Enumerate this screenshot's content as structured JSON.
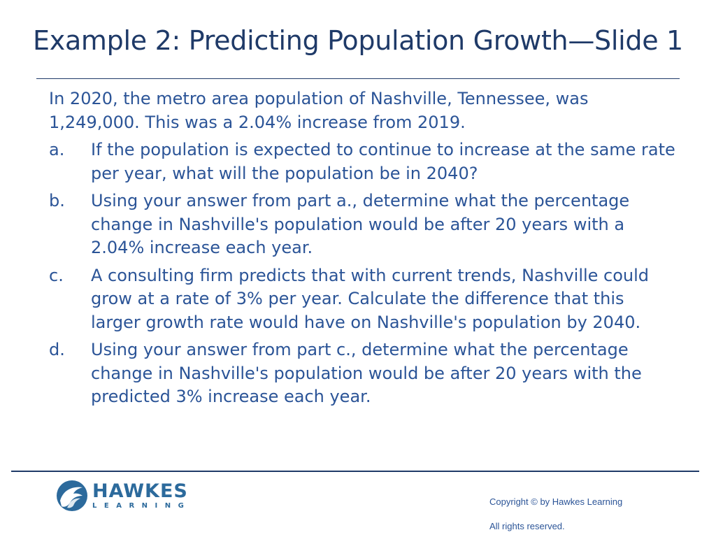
{
  "slide": {
    "title": "Example 2: Predicting Population Growth—Slide 1",
    "intro": "In 2020, the metro area population of Nashville, Tennessee, was 1,249,000. This was a 2.04% increase from 2019.",
    "parts": [
      {
        "letter": "a.",
        "text": "If the population is expected to continue to increase at the same rate per year, what will the population be in 2040?"
      },
      {
        "letter": "b.",
        "text": "Using your answer from part a., determine what the percentage change in Nashville's population would be after 20 years with a 2.04% increase each year."
      },
      {
        "letter": "c.",
        "text": "A consulting firm predicts that with current trends, Nashville could grow at a rate of 3% per year. Calculate the difference that this larger growth rate would have on Nashville's population by 2040."
      },
      {
        "letter": "d.",
        "text": "Using your answer from part c., determine what the percentage change in Nashville's population would be after 20 years with the predicted 3% increase each year."
      }
    ]
  },
  "footer": {
    "logo": {
      "name": "HAWKES",
      "sub": "LEARNING",
      "icon": "hawk-head-icon"
    },
    "copyright": "Copyright © by Hawkes Learning",
    "rights": "All rights reserved."
  },
  "colors": {
    "title": "#1f3a68",
    "body": "#2b5497",
    "logo": "#2c6a9c",
    "rule": "#1f3a68"
  }
}
